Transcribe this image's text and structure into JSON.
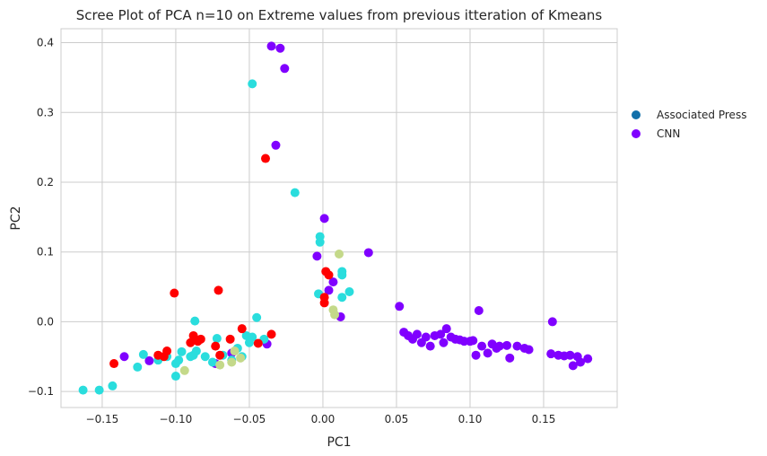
{
  "chart_data": {
    "type": "scatter",
    "title": "Scree Plot of PCA n=10 on Extreme values from previous itteration of Kmeans",
    "xlabel": "PC1",
    "ylabel": "PC2",
    "xlim": [
      -0.178,
      0.2
    ],
    "ylim": [
      -0.123,
      0.42
    ],
    "xticks": [
      -0.15,
      -0.1,
      -0.05,
      0.0,
      0.05,
      0.1,
      0.15
    ],
    "xtick_labels": [
      "−0.15",
      "−0.10",
      "−0.05",
      "0.00",
      "0.05",
      "0.10",
      "0.15"
    ],
    "yticks": [
      -0.1,
      0.0,
      0.1,
      0.2,
      0.3,
      0.4
    ],
    "ytick_labels": [
      "−0.1",
      "0.0",
      "0.1",
      "0.2",
      "0.3",
      "0.4"
    ],
    "grid": true,
    "legend": {
      "placement": "outside-right",
      "entries": [
        {
          "label": "Associated Press",
          "color": "#1170aa"
        },
        {
          "label": "CNN",
          "color": "#8000ff"
        }
      ]
    },
    "groups": [
      {
        "color": "#8000ff",
        "points": [
          [
            -0.035,
            0.395
          ],
          [
            -0.029,
            0.392
          ],
          [
            -0.026,
            0.363
          ],
          [
            -0.032,
            0.253
          ],
          [
            0.001,
            0.148
          ],
          [
            -0.004,
            0.094
          ],
          [
            0.031,
            0.099
          ],
          [
            0.052,
            0.022
          ],
          [
            0.106,
            0.016
          ],
          [
            0.156,
            0.0
          ],
          [
            0.007,
            0.057
          ],
          [
            0.004,
            0.045
          ],
          [
            0.012,
            0.007
          ],
          [
            -0.135,
            -0.05
          ],
          [
            -0.118,
            -0.056
          ],
          [
            -0.073,
            -0.06
          ],
          [
            -0.062,
            -0.045
          ],
          [
            -0.038,
            -0.032
          ],
          [
            0.055,
            -0.015
          ],
          [
            0.058,
            -0.02
          ],
          [
            0.061,
            -0.025
          ],
          [
            0.064,
            -0.018
          ],
          [
            0.067,
            -0.03
          ],
          [
            0.07,
            -0.022
          ],
          [
            0.073,
            -0.035
          ],
          [
            0.076,
            -0.02
          ],
          [
            0.08,
            -0.018
          ],
          [
            0.082,
            -0.03
          ],
          [
            0.084,
            -0.01
          ],
          [
            0.087,
            -0.022
          ],
          [
            0.09,
            -0.025
          ],
          [
            0.093,
            -0.026
          ],
          [
            0.096,
            -0.028
          ],
          [
            0.1,
            -0.028
          ],
          [
            0.102,
            -0.027
          ],
          [
            0.104,
            -0.048
          ],
          [
            0.108,
            -0.035
          ],
          [
            0.112,
            -0.045
          ],
          [
            0.115,
            -0.032
          ],
          [
            0.118,
            -0.038
          ],
          [
            0.12,
            -0.035
          ],
          [
            0.125,
            -0.034
          ],
          [
            0.127,
            -0.052
          ],
          [
            0.132,
            -0.035
          ],
          [
            0.137,
            -0.038
          ],
          [
            0.14,
            -0.04
          ],
          [
            0.155,
            -0.046
          ],
          [
            0.16,
            -0.048
          ],
          [
            0.164,
            -0.049
          ],
          [
            0.168,
            -0.048
          ],
          [
            0.173,
            -0.05
          ],
          [
            0.17,
            -0.063
          ],
          [
            0.175,
            -0.058
          ],
          [
            0.18,
            -0.053
          ]
        ]
      },
      {
        "color": "#2adddd",
        "points": [
          [
            -0.048,
            0.341
          ],
          [
            -0.019,
            0.185
          ],
          [
            -0.002,
            0.122
          ],
          [
            -0.002,
            0.114
          ],
          [
            0.013,
            0.072
          ],
          [
            0.013,
            0.067
          ],
          [
            0.018,
            0.043
          ],
          [
            0.013,
            0.035
          ],
          [
            -0.003,
            0.04
          ],
          [
            -0.045,
            0.006
          ],
          [
            -0.087,
            0.001
          ],
          [
            -0.163,
            -0.098
          ],
          [
            -0.152,
            -0.098
          ],
          [
            -0.143,
            -0.092
          ],
          [
            -0.126,
            -0.065
          ],
          [
            -0.122,
            -0.047
          ],
          [
            -0.112,
            -0.055
          ],
          [
            -0.106,
            -0.05
          ],
          [
            -0.1,
            -0.06
          ],
          [
            -0.098,
            -0.055
          ],
          [
            -0.096,
            -0.043
          ],
          [
            -0.09,
            -0.05
          ],
          [
            -0.086,
            -0.042
          ],
          [
            -0.08,
            -0.05
          ],
          [
            -0.075,
            -0.058
          ],
          [
            -0.072,
            -0.024
          ],
          [
            -0.068,
            -0.048
          ],
          [
            -0.062,
            -0.055
          ],
          [
            -0.058,
            -0.038
          ],
          [
            -0.055,
            -0.05
          ],
          [
            -0.052,
            -0.02
          ],
          [
            -0.05,
            -0.03
          ],
          [
            -0.048,
            -0.022
          ],
          [
            -0.04,
            -0.025
          ],
          [
            -0.1,
            -0.078
          ],
          [
            -0.088,
            -0.048
          ]
        ]
      },
      {
        "color": "#c4d98a",
        "points": [
          [
            0.011,
            0.097
          ],
          [
            0.007,
            0.017
          ],
          [
            0.008,
            0.01
          ],
          [
            -0.094,
            -0.07
          ],
          [
            -0.07,
            -0.062
          ],
          [
            -0.062,
            -0.058
          ],
          [
            -0.056,
            -0.052
          ],
          [
            -0.06,
            -0.042
          ]
        ]
      },
      {
        "color": "#ff0000",
        "points": [
          [
            -0.039,
            0.234
          ],
          [
            0.002,
            0.072
          ],
          [
            0.004,
            0.067
          ],
          [
            0.001,
            0.035
          ],
          [
            0.001,
            0.027
          ],
          [
            -0.101,
            0.041
          ],
          [
            -0.071,
            0.045
          ],
          [
            -0.035,
            -0.018
          ],
          [
            -0.055,
            -0.01
          ],
          [
            -0.063,
            -0.025
          ],
          [
            -0.044,
            -0.031
          ],
          [
            -0.073,
            -0.035
          ],
          [
            -0.07,
            -0.048
          ],
          [
            -0.083,
            -0.025
          ],
          [
            -0.088,
            -0.02
          ],
          [
            -0.09,
            -0.03
          ],
          [
            -0.085,
            -0.028
          ],
          [
            -0.106,
            -0.042
          ],
          [
            -0.108,
            -0.05
          ],
          [
            -0.112,
            -0.048
          ],
          [
            -0.142,
            -0.06
          ]
        ]
      }
    ]
  }
}
